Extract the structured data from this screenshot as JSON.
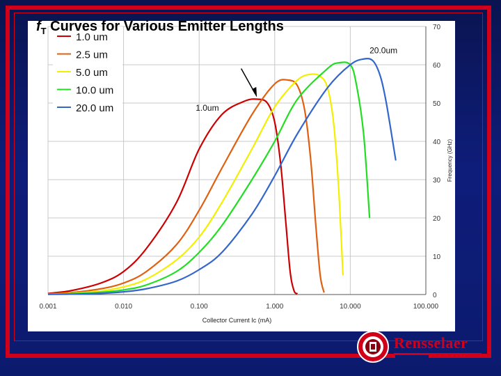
{
  "slide": {
    "title_main": "f",
    "title_sub": "T",
    "title_rest": " Curves for Various Emitter Lengths",
    "brand": "Rensselaer"
  },
  "colors": {
    "frame": "#d0001a",
    "background": "#0e1d7a",
    "series": [
      "#cc0000",
      "#e06010",
      "#f2f000",
      "#22dd22",
      "#3366cc"
    ]
  },
  "chart_data": {
    "type": "line",
    "xscale": "log",
    "xlim": [
      0.001,
      100
    ],
    "ylim": [
      0,
      70
    ],
    "xlabel": "Collector Current Ic (mA)",
    "ylabel": "Frequency (GHz)",
    "xticks": [
      "0.001",
      "0.010",
      "0.100",
      "1.000",
      "10.000",
      "100.000"
    ],
    "yticks": [
      "0",
      "10",
      "20",
      "30",
      "40",
      "50",
      "60",
      "70"
    ],
    "grid": true,
    "legend": "top-left",
    "annotations": [
      {
        "text": "1.0um",
        "series": 0
      },
      {
        "text": "20.0um",
        "series": 4
      }
    ],
    "series": [
      {
        "name": "1.0 um",
        "color": "#cc0000",
        "x": [
          0.001,
          0.002,
          0.005,
          0.01,
          0.02,
          0.05,
          0.1,
          0.2,
          0.4,
          0.6,
          0.8,
          1.0,
          1.2,
          1.4,
          1.6,
          1.8,
          2.0
        ],
        "y": [
          0.3,
          1,
          3,
          6,
          12,
          24,
          38,
          47,
          50.5,
          51,
          50,
          45,
          34,
          19,
          6,
          1,
          0.2
        ]
      },
      {
        "name": "2.5 um",
        "color": "#e06010",
        "x": [
          0.001,
          0.002,
          0.005,
          0.01,
          0.02,
          0.05,
          0.1,
          0.2,
          0.5,
          1.0,
          1.5,
          2.0,
          2.5,
          3.0,
          3.5,
          4.0,
          4.5
        ],
        "y": [
          0.2,
          0.5,
          1.5,
          3,
          6,
          13,
          22,
          33,
          47,
          55,
          56,
          54.5,
          48,
          35,
          18,
          5,
          0.5
        ]
      },
      {
        "name": "5.0 um",
        "color": "#f2f000",
        "x": [
          0.001,
          0.002,
          0.005,
          0.01,
          0.02,
          0.05,
          0.1,
          0.2,
          0.5,
          1.0,
          2.0,
          3.0,
          4.0,
          5.0,
          6.0,
          7.0,
          8.0
        ],
        "y": [
          0.1,
          0.3,
          0.9,
          2,
          4,
          9,
          15,
          24,
          38,
          49,
          56,
          57.5,
          57,
          54,
          45,
          28,
          5
        ]
      },
      {
        "name": "10.0 um",
        "color": "#22dd22",
        "x": [
          0.001,
          0.002,
          0.005,
          0.01,
          0.02,
          0.05,
          0.1,
          0.2,
          0.5,
          1.0,
          2.0,
          5.0,
          7.0,
          10.0,
          12.0,
          15.0,
          18.0
        ],
        "y": [
          0.1,
          0.2,
          0.6,
          1.2,
          2.5,
          6,
          11,
          18,
          30,
          40,
          51,
          59,
          60.5,
          60,
          55,
          42,
          20
        ]
      },
      {
        "name": "20.0 um",
        "color": "#3366cc",
        "x": [
          0.001,
          0.002,
          0.005,
          0.01,
          0.02,
          0.05,
          0.1,
          0.2,
          0.5,
          1.0,
          2.0,
          5.0,
          10.0,
          15.0,
          20.0,
          25.0,
          30.0,
          40.0
        ],
        "y": [
          0.05,
          0.1,
          0.3,
          0.7,
          1.5,
          3.5,
          6.5,
          11,
          21,
          31,
          42,
          54,
          60,
          61.5,
          61,
          57,
          50,
          35
        ]
      }
    ]
  }
}
